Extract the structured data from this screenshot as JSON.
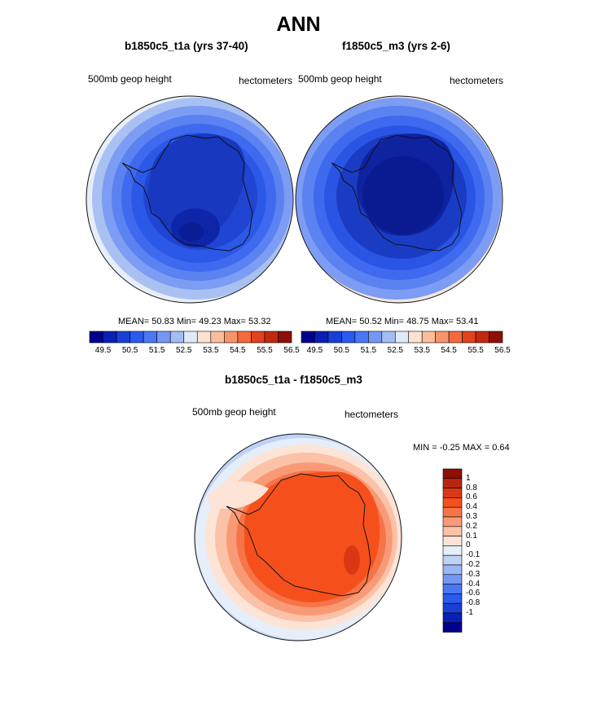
{
  "title": "ANN",
  "panels": [
    {
      "title": "b1850c5_t1a (yrs 37-40)",
      "left_label": "500mb geop height",
      "right_label": "hectometers",
      "stats": {
        "mean_label": "MEAN=",
        "mean": "50.83",
        "min_label": "Min=",
        "min": "49.23",
        "max_label": "Max=",
        "max": "53.32"
      }
    },
    {
      "title": "f1850c5_m3 (yrs 2-6)",
      "left_label": "500mb geop height",
      "right_label": "hectometers",
      "stats": {
        "mean_label": "MEAN=",
        "mean": "50.52",
        "min_label": "Min=",
        "min": "48.75",
        "max_label": "Max=",
        "max": "53.41"
      }
    }
  ],
  "colorbar_top": {
    "colors": [
      "#00008c",
      "#0a1fb4",
      "#1a3fd6",
      "#2a5af0",
      "#4a78f5",
      "#7497f5",
      "#a3bdf3",
      "#dfe9f8",
      "#fde2d2",
      "#fbbd9a",
      "#f7946a",
      "#f36a3c",
      "#e2421e",
      "#c12a10",
      "#8e0f05"
    ],
    "labels": [
      "49.5",
      "50.5",
      "51.5",
      "52.5",
      "53.5",
      "54.5",
      "55.5",
      "56.5"
    ]
  },
  "diff_panel": {
    "title": "b1850c5_t1a - f1850c5_m3",
    "left_label": "500mb geop height",
    "right_label": "hectometers",
    "minmax": {
      "min_label": "MIN =",
      "min": "-0.25",
      "max_label": "MAX =",
      "max": "0.64"
    }
  },
  "colorbar_diff": {
    "colors": [
      "#8e0f05",
      "#b82610",
      "#dc3714",
      "#f5501c",
      "#f77448",
      "#f99a77",
      "#fbc2a7",
      "#fde4d6",
      "#e6eefa",
      "#bfd2f6",
      "#9ab6f4",
      "#7497f5",
      "#4a78f5",
      "#2a5af0",
      "#1a3fd6",
      "#0a1fb4",
      "#00008c"
    ],
    "labels": [
      "1",
      "0.8",
      "0.6",
      "0.4",
      "0.3",
      "0.2",
      "0.1",
      "0",
      "-0.1",
      "-0.2",
      "-0.3",
      "-0.4",
      "-0.6",
      "-0.8",
      "-1"
    ]
  }
}
